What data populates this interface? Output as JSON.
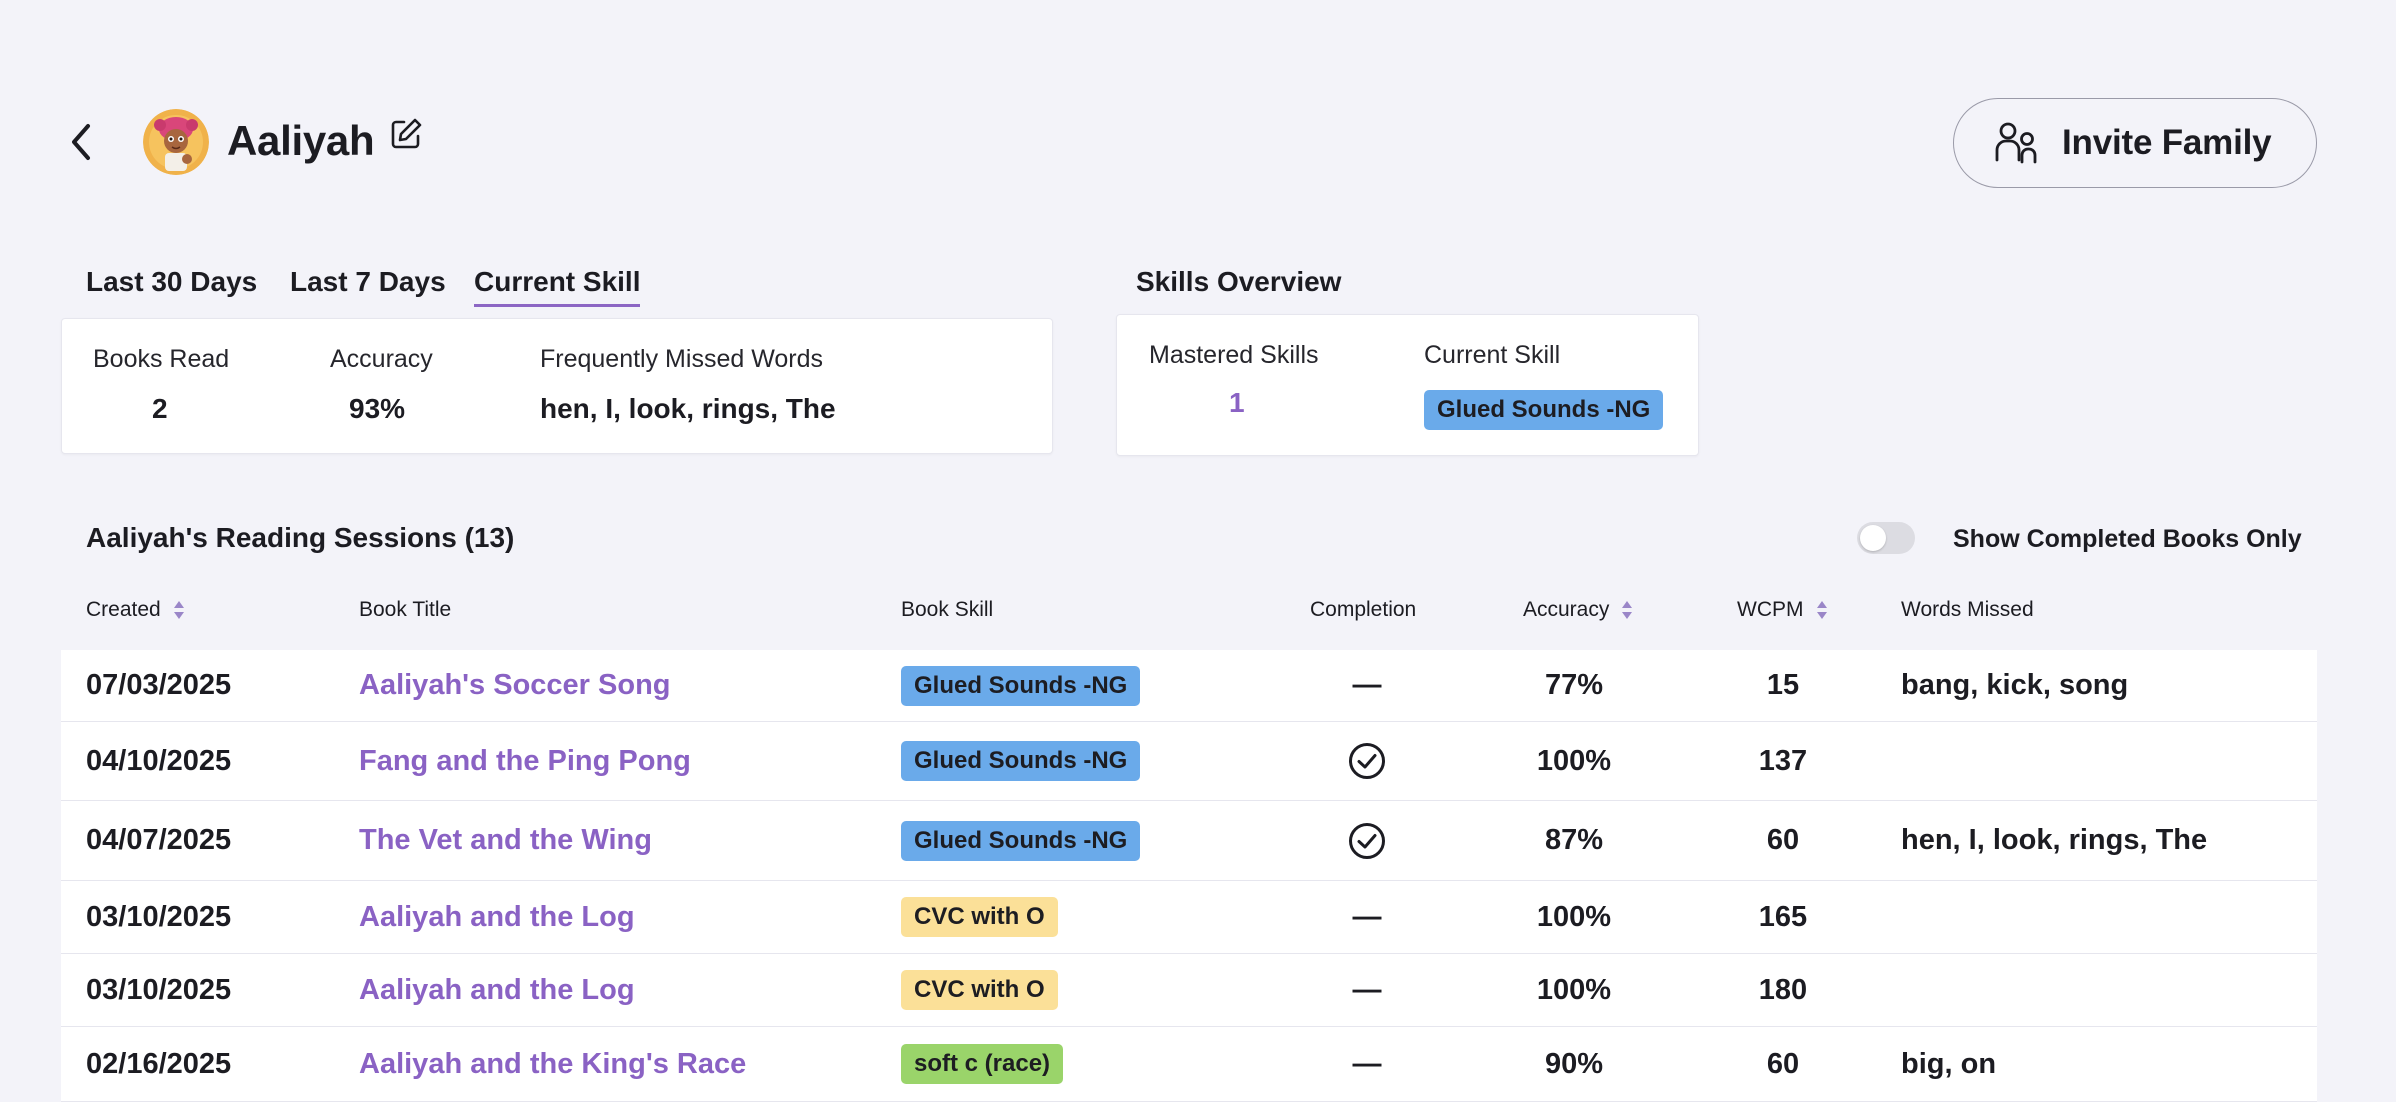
{
  "header": {
    "student_name": "Aaliyah",
    "invite_label": "Invite Family"
  },
  "tabs": [
    {
      "label": "Last 30 Days",
      "active": false
    },
    {
      "label": "Last 7 Days",
      "active": false
    },
    {
      "label": "Current Skill",
      "active": true
    }
  ],
  "stats": {
    "books_read_label": "Books Read",
    "books_read_value": "2",
    "accuracy_label": "Accuracy",
    "accuracy_value": "93%",
    "missed_label": "Frequently Missed Words",
    "missed_value": "hen, I, look, rings, The"
  },
  "skills_overview": {
    "title": "Skills Overview",
    "mastered_label": "Mastered Skills",
    "mastered_value": "1",
    "current_label": "Current Skill",
    "current_value": "Glued Sounds -NG"
  },
  "sessions": {
    "title": "Aaliyah's Reading Sessions (13)",
    "toggle_label": "Show Completed Books Only",
    "toggle_on": false,
    "columns": {
      "created": "Created",
      "book_title": "Book Title",
      "book_skill": "Book Skill",
      "completion": "Completion",
      "accuracy": "Accuracy",
      "wcpm": "WCPM",
      "words_missed": "Words Missed"
    },
    "rows": [
      {
        "date": "07/03/2025",
        "title": "Aaliyah's Soccer Song",
        "skill": "Glued Sounds -NG",
        "skill_color": "#6aaaea",
        "completed": false,
        "completion_text": "—",
        "accuracy": "77%",
        "wcpm": "15",
        "missed": "bang, kick, song"
      },
      {
        "date": "04/10/2025",
        "title": "Fang and the Ping Pong",
        "skill": "Glued Sounds -NG",
        "skill_color": "#6aaaea",
        "completed": true,
        "completion_text": "",
        "accuracy": "100%",
        "wcpm": "137",
        "missed": ""
      },
      {
        "date": "04/07/2025",
        "title": "The Vet and the Wing",
        "skill": "Glued Sounds -NG",
        "skill_color": "#6aaaea",
        "completed": true,
        "completion_text": "",
        "accuracy": "87%",
        "wcpm": "60",
        "missed": "hen, I, look, rings, The"
      },
      {
        "date": "03/10/2025",
        "title": "Aaliyah and the Log",
        "skill": "CVC with O",
        "skill_color": "#fbe098",
        "completed": false,
        "completion_text": "—",
        "accuracy": "100%",
        "wcpm": "165",
        "missed": ""
      },
      {
        "date": "03/10/2025",
        "title": "Aaliyah and the Log",
        "skill": "CVC with O",
        "skill_color": "#fbe098",
        "completed": false,
        "completion_text": "—",
        "accuracy": "100%",
        "wcpm": "180",
        "missed": ""
      },
      {
        "date": "02/16/2025",
        "title": "Aaliyah and the King's Race",
        "skill": "soft c (race)",
        "skill_color": "#9ad46a",
        "completed": false,
        "completion_text": "—",
        "accuracy": "90%",
        "wcpm": "60",
        "missed": "big, on"
      }
    ]
  },
  "icons": {
    "back": "chevron-left-icon",
    "edit": "edit-icon",
    "invite": "family-icon",
    "sort": "sort-icon",
    "completed": "check-circle-icon"
  },
  "colors": {
    "accent": "#8a62c4",
    "background": "#f3f3f9"
  }
}
